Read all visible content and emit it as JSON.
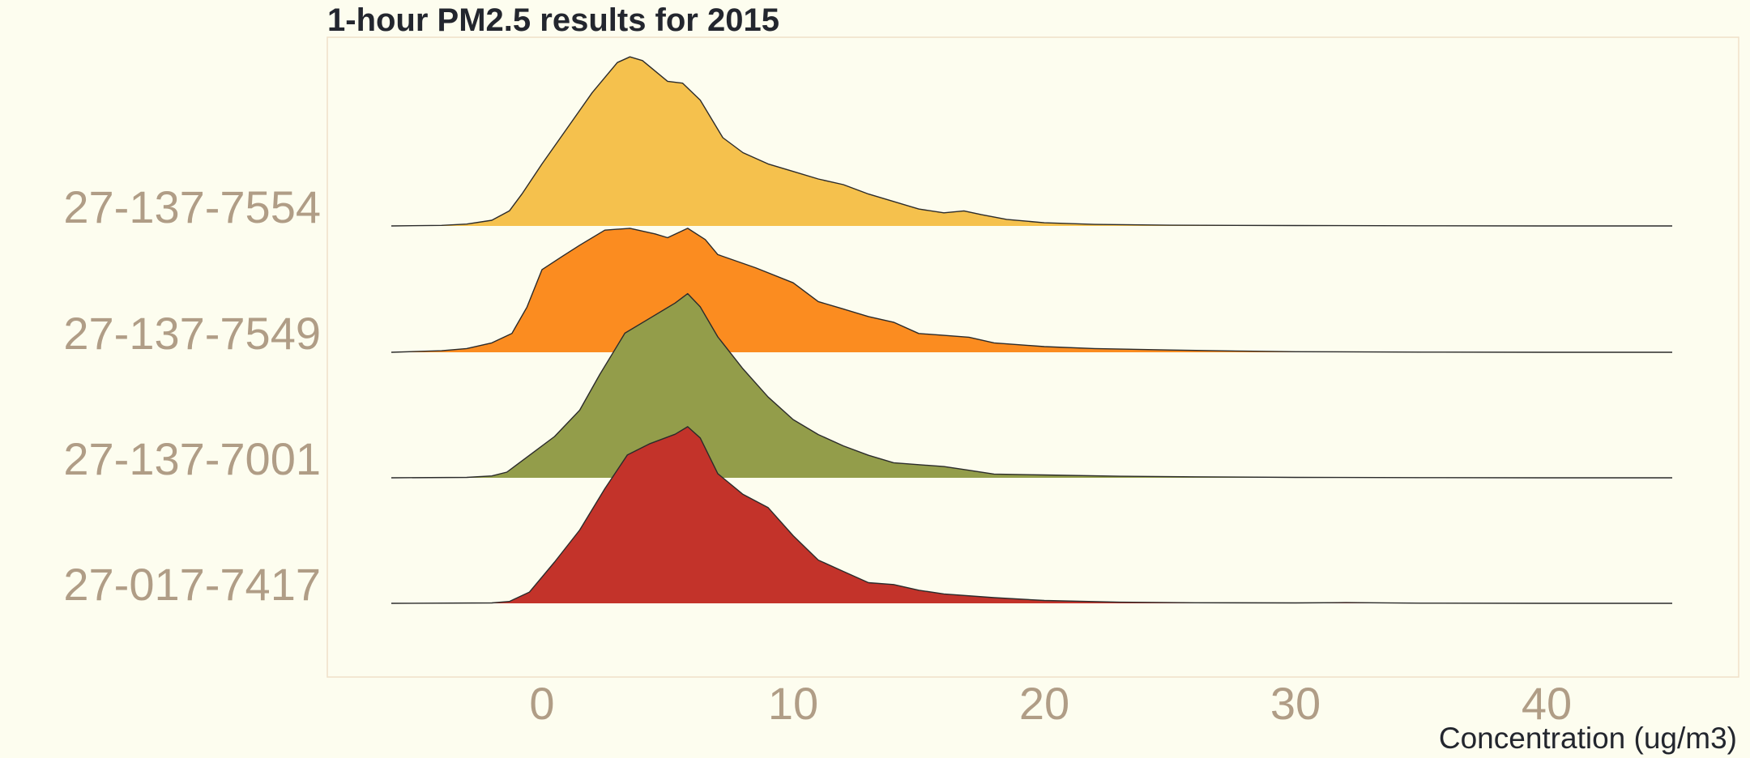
{
  "chart_data": {
    "type": "ridgeline",
    "title": "1-hour PM2.5 results for 2015",
    "xlabel": "Concentration (ug/m3)",
    "ylabel": "",
    "xlim": [
      -8.5,
      47.5
    ],
    "x_ticks": [
      0,
      10,
      20,
      30,
      40
    ],
    "x_tick_labels": [
      "0",
      "10",
      "20",
      "30",
      "40"
    ],
    "grid": false,
    "legend": "none",
    "series": [
      {
        "name": "27-137-7554",
        "color": "#f5c14d",
        "points": [
          [
            -6,
            0
          ],
          [
            -4,
            0.003
          ],
          [
            -3,
            0.01
          ],
          [
            -2,
            0.03
          ],
          [
            -1.3,
            0.08
          ],
          [
            -0.8,
            0.17
          ],
          [
            0,
            0.33
          ],
          [
            1,
            0.52
          ],
          [
            2,
            0.71
          ],
          [
            3,
            0.87
          ],
          [
            3.5,
            0.9
          ],
          [
            4,
            0.88
          ],
          [
            5,
            0.77
          ],
          [
            5.6,
            0.76
          ],
          [
            6.3,
            0.67
          ],
          [
            7.2,
            0.47
          ],
          [
            8,
            0.39
          ],
          [
            9,
            0.33
          ],
          [
            10,
            0.29
          ],
          [
            11,
            0.25
          ],
          [
            12,
            0.22
          ],
          [
            13,
            0.17
          ],
          [
            14,
            0.13
          ],
          [
            15,
            0.09
          ],
          [
            16,
            0.07
          ],
          [
            16.8,
            0.08
          ],
          [
            17.5,
            0.06
          ],
          [
            18.5,
            0.035
          ],
          [
            20,
            0.017
          ],
          [
            22,
            0.008
          ],
          [
            25,
            0.004
          ],
          [
            30,
            0.002
          ],
          [
            35,
            0.001
          ],
          [
            40,
            0
          ],
          [
            45,
            0
          ]
        ]
      },
      {
        "name": "27-137-7549",
        "color": "#fb8c20",
        "points": [
          [
            -6,
            0
          ],
          [
            -4,
            0.008
          ],
          [
            -3,
            0.02
          ],
          [
            -2,
            0.05
          ],
          [
            -1.2,
            0.1
          ],
          [
            -0.6,
            0.24
          ],
          [
            0,
            0.44
          ],
          [
            0.8,
            0.51
          ],
          [
            1.5,
            0.57
          ],
          [
            2.5,
            0.65
          ],
          [
            3.5,
            0.66
          ],
          [
            4.5,
            0.63
          ],
          [
            5,
            0.61
          ],
          [
            5.8,
            0.66
          ],
          [
            6.5,
            0.6
          ],
          [
            7,
            0.52
          ],
          [
            8.5,
            0.45
          ],
          [
            10,
            0.37
          ],
          [
            11,
            0.27
          ],
          [
            12,
            0.23
          ],
          [
            13,
            0.19
          ],
          [
            14,
            0.16
          ],
          [
            15,
            0.1
          ],
          [
            16,
            0.09
          ],
          [
            17,
            0.08
          ],
          [
            18,
            0.05
          ],
          [
            20,
            0.03
          ],
          [
            22,
            0.02
          ],
          [
            25,
            0.012
          ],
          [
            28,
            0.006
          ],
          [
            30,
            0.003
          ],
          [
            35,
            0.001
          ],
          [
            40,
            0
          ],
          [
            45,
            0
          ]
        ]
      },
      {
        "name": "27-137-7001",
        "color": "#939d4a",
        "points": [
          [
            -6,
            0
          ],
          [
            -3,
            0.002
          ],
          [
            -2,
            0.01
          ],
          [
            -1.4,
            0.03
          ],
          [
            -0.5,
            0.12
          ],
          [
            0.5,
            0.22
          ],
          [
            1.5,
            0.36
          ],
          [
            2.3,
            0.55
          ],
          [
            3.3,
            0.77
          ],
          [
            4.3,
            0.85
          ],
          [
            5.3,
            0.93
          ],
          [
            5.8,
            0.98
          ],
          [
            6.3,
            0.91
          ],
          [
            7,
            0.75
          ],
          [
            8,
            0.58
          ],
          [
            9,
            0.43
          ],
          [
            10,
            0.31
          ],
          [
            11,
            0.23
          ],
          [
            12,
            0.17
          ],
          [
            13,
            0.12
          ],
          [
            14,
            0.08
          ],
          [
            15,
            0.07
          ],
          [
            16,
            0.06
          ],
          [
            17,
            0.04
          ],
          [
            18,
            0.02
          ],
          [
            20,
            0.015
          ],
          [
            23,
            0.008
          ],
          [
            26,
            0.005
          ],
          [
            30,
            0.002
          ],
          [
            35,
            0.001
          ],
          [
            40,
            0
          ],
          [
            45,
            0
          ]
        ]
      },
      {
        "name": "27-017-7417",
        "color": "#c3332a",
        "points": [
          [
            -6,
            0
          ],
          [
            -2,
            0.002
          ],
          [
            -1.3,
            0.01
          ],
          [
            -0.5,
            0.06
          ],
          [
            0.5,
            0.22
          ],
          [
            1.5,
            0.39
          ],
          [
            2.5,
            0.61
          ],
          [
            3.4,
            0.79
          ],
          [
            4.3,
            0.85
          ],
          [
            5.3,
            0.9
          ],
          [
            5.8,
            0.94
          ],
          [
            6.3,
            0.88
          ],
          [
            7,
            0.69
          ],
          [
            8,
            0.58
          ],
          [
            9,
            0.51
          ],
          [
            10,
            0.36
          ],
          [
            11,
            0.23
          ],
          [
            12,
            0.17
          ],
          [
            13,
            0.11
          ],
          [
            14,
            0.1
          ],
          [
            15,
            0.07
          ],
          [
            16,
            0.05
          ],
          [
            18,
            0.03
          ],
          [
            20,
            0.015
          ],
          [
            23,
            0.006
          ],
          [
            26,
            0.003
          ],
          [
            30,
            0.002
          ],
          [
            32,
            0.004
          ],
          [
            35,
            0.001
          ],
          [
            40,
            0
          ],
          [
            45,
            0
          ]
        ]
      }
    ]
  }
}
